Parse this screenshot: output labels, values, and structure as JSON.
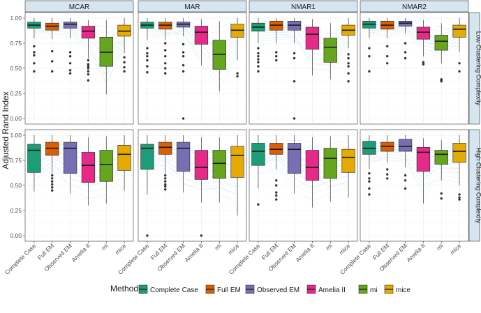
{
  "chart_data": {
    "type": "box",
    "title": "",
    "ylabel": "Adjusted Rand Index",
    "xlabel": "",
    "ylim": [
      0,
      1
    ],
    "yticks": [
      0.0,
      0.25,
      0.5,
      0.75,
      1.0
    ],
    "ytick_labels": [
      "0.00",
      "0.25",
      "0.50",
      "0.75",
      "1.00"
    ],
    "columns": [
      "MCAR",
      "MAR",
      "NMAR1",
      "NMAR2"
    ],
    "rows": [
      "Low Clustering Complexity",
      "High Clustering Complexity"
    ],
    "methods": [
      "Complete Case",
      "Full EM",
      "Observed EM",
      "Amelia II",
      "mi",
      "mice"
    ],
    "colors": {
      "Complete Case": "#1b9e77",
      "Full EM": "#d95f02",
      "Observed EM": "#7570b3",
      "Amelia II": "#e7298a",
      "mi": "#66a61e",
      "mice": "#e6ab02",
      "strip_fill": "#d6e6f0",
      "panel_bg": "#ffffff",
      "grid": "#ebebeb",
      "spaghetti": "#9ecae1"
    },
    "legend": {
      "title": "Method",
      "position": "bottom",
      "items": [
        "Complete Case",
        "Full EM",
        "Observed EM",
        "Amelia II",
        "mi",
        "mice"
      ]
    },
    "panels": [
      {
        "row": "Low Clustering Complexity",
        "col": "MCAR",
        "boxes": [
          {
            "method": "Complete Case",
            "q1": 0.9,
            "median": 0.93,
            "q3": 0.96,
            "lo": 0.8,
            "hi": 1.0,
            "outliers": [
              0.72,
              0.66,
              0.63,
              0.55,
              0.47
            ]
          },
          {
            "method": "Full EM",
            "q1": 0.88,
            "median": 0.92,
            "q3": 0.95,
            "lo": 0.79,
            "hi": 1.0,
            "outliers": [
              0.67,
              0.57,
              0.47
            ]
          },
          {
            "method": "Observed EM",
            "q1": 0.9,
            "median": 0.94,
            "q3": 0.96,
            "lo": 0.8,
            "hi": 1.0,
            "outliers": [
              0.66,
              0.62,
              0.55,
              0.48,
              0.45
            ]
          },
          {
            "method": "Amelia II",
            "q1": 0.8,
            "median": 0.87,
            "q3": 0.92,
            "lo": 0.6,
            "hi": 0.98,
            "outliers": [
              0.58,
              0.54,
              0.52,
              0.5,
              0.47,
              0.44,
              0.38
            ]
          },
          {
            "method": "mi",
            "q1": 0.52,
            "median": 0.66,
            "q3": 0.81,
            "lo": 0.24,
            "hi": 0.98,
            "outliers": []
          },
          {
            "method": "mice",
            "q1": 0.82,
            "median": 0.87,
            "q3": 0.93,
            "lo": 0.65,
            "hi": 1.0,
            "outliers": [
              0.61,
              0.56,
              0.51,
              0.47
            ]
          }
        ]
      },
      {
        "row": "Low Clustering Complexity",
        "col": "MAR",
        "boxes": [
          {
            "method": "Complete Case",
            "q1": 0.9,
            "median": 0.93,
            "q3": 0.96,
            "lo": 0.78,
            "hi": 1.0,
            "outliers": [
              0.7,
              0.65,
              0.62,
              0.58,
              0.52,
              0.46
            ]
          },
          {
            "method": "Full EM",
            "q1": 0.89,
            "median": 0.93,
            "q3": 0.96,
            "lo": 0.78,
            "hi": 1.0,
            "outliers": [
              0.75,
              0.68,
              0.62,
              0.55,
              0.5,
              0.45
            ]
          },
          {
            "method": "Observed EM",
            "q1": 0.91,
            "median": 0.94,
            "q3": 0.96,
            "lo": 0.82,
            "hi": 1.0,
            "outliers": [
              0.74,
              0.66,
              0.62,
              0.53,
              0.47,
              0.0
            ]
          },
          {
            "method": "Amelia II",
            "q1": 0.74,
            "median": 0.86,
            "q3": 0.92,
            "lo": 0.53,
            "hi": 0.99,
            "outliers": []
          },
          {
            "method": "mi",
            "q1": 0.49,
            "median": 0.64,
            "q3": 0.78,
            "lo": 0.27,
            "hi": 0.97,
            "outliers": []
          },
          {
            "method": "mice",
            "q1": 0.81,
            "median": 0.88,
            "q3": 0.94,
            "lo": 0.58,
            "hi": 1.0,
            "outliers": [
              0.45,
              0.42
            ]
          }
        ]
      },
      {
        "row": "Low Clustering Complexity",
        "col": "NMAR1",
        "boxes": [
          {
            "method": "Complete Case",
            "q1": 0.87,
            "median": 0.91,
            "q3": 0.95,
            "lo": 0.75,
            "hi": 1.0,
            "outliers": [
              0.7,
              0.65,
              0.62,
              0.59,
              0.56,
              0.52,
              0.47
            ]
          },
          {
            "method": "Full EM",
            "q1": 0.88,
            "median": 0.93,
            "q3": 0.97,
            "lo": 0.75,
            "hi": 1.0,
            "outliers": [
              0.66,
              0.62,
              0.58
            ]
          },
          {
            "method": "Observed EM",
            "q1": 0.88,
            "median": 0.93,
            "q3": 0.97,
            "lo": 0.75,
            "hi": 1.0,
            "outliers": [
              0.65,
              0.6,
              0.37,
              0.0
            ]
          },
          {
            "method": "Amelia II",
            "q1": 0.69,
            "median": 0.84,
            "q3": 0.91,
            "lo": 0.43,
            "hi": 0.99,
            "outliers": []
          },
          {
            "method": "mi",
            "q1": 0.56,
            "median": 0.71,
            "q3": 0.8,
            "lo": 0.39,
            "hi": 0.95,
            "outliers": []
          },
          {
            "method": "mice",
            "q1": 0.83,
            "median": 0.88,
            "q3": 0.93,
            "lo": 0.7,
            "hi": 1.0,
            "outliers": [
              0.64,
              0.6,
              0.55,
              0.52,
              0.45,
              0.37
            ]
          }
        ]
      },
      {
        "row": "Low Clustering Complexity",
        "col": "NMAR2",
        "boxes": [
          {
            "method": "Complete Case",
            "q1": 0.9,
            "median": 0.94,
            "q3": 0.97,
            "lo": 0.8,
            "hi": 1.0,
            "outliers": [
              0.7,
              0.62,
              0.47
            ]
          },
          {
            "method": "Full EM",
            "q1": 0.89,
            "median": 0.93,
            "q3": 0.97,
            "lo": 0.8,
            "hi": 1.0,
            "outliers": [
              0.72,
              0.62,
              0.55
            ]
          },
          {
            "method": "Observed EM",
            "q1": 0.92,
            "median": 0.95,
            "q3": 0.97,
            "lo": 0.85,
            "hi": 1.0,
            "outliers": [
              0.75,
              0.66,
              0.6
            ]
          },
          {
            "method": "Amelia II",
            "q1": 0.79,
            "median": 0.86,
            "q3": 0.91,
            "lo": 0.62,
            "hi": 0.98,
            "outliers": [
              0.56,
              0.54
            ]
          },
          {
            "method": "mi",
            "q1": 0.68,
            "median": 0.77,
            "q3": 0.83,
            "lo": 0.55,
            "hi": 0.95,
            "outliers": [
              0.39,
              0.38,
              0.37
            ]
          },
          {
            "method": "mice",
            "q1": 0.81,
            "median": 0.89,
            "q3": 0.93,
            "lo": 0.66,
            "hi": 1.0,
            "outliers": [
              0.55,
              0.47
            ]
          }
        ]
      },
      {
        "row": "High Clustering Complexity",
        "col": "MCAR",
        "boxes": [
          {
            "method": "Complete Case",
            "q1": 0.63,
            "median": 0.85,
            "q3": 0.91,
            "lo": 0.44,
            "hi": 1.0,
            "outliers": []
          },
          {
            "method": "Full EM",
            "q1": 0.8,
            "median": 0.87,
            "q3": 0.93,
            "lo": 0.62,
            "hi": 1.0,
            "outliers": [
              0.6,
              0.57,
              0.54,
              0.51,
              0.48,
              0.45
            ]
          },
          {
            "method": "Observed EM",
            "q1": 0.62,
            "median": 0.87,
            "q3": 0.93,
            "lo": 0.42,
            "hi": 1.0,
            "outliers": []
          },
          {
            "method": "Amelia II",
            "q1": 0.53,
            "median": 0.7,
            "q3": 0.83,
            "lo": 0.3,
            "hi": 0.98,
            "outliers": []
          },
          {
            "method": "mi",
            "q1": 0.54,
            "median": 0.71,
            "q3": 0.85,
            "lo": 0.32,
            "hi": 0.99,
            "outliers": []
          },
          {
            "method": "mice",
            "q1": 0.65,
            "median": 0.81,
            "q3": 0.9,
            "lo": 0.45,
            "hi": 1.0,
            "outliers": []
          }
        ]
      },
      {
        "row": "High Clustering Complexity",
        "col": "MAR",
        "boxes": [
          {
            "method": "Complete Case",
            "q1": 0.66,
            "median": 0.87,
            "q3": 0.91,
            "lo": 0.41,
            "hi": 1.0,
            "outliers": [
              0.0
            ]
          },
          {
            "method": "Full EM",
            "q1": 0.81,
            "median": 0.88,
            "q3": 0.93,
            "lo": 0.62,
            "hi": 1.0,
            "outliers": [
              0.6,
              0.57,
              0.54,
              0.51,
              0.49,
              0.46
            ]
          },
          {
            "method": "Observed EM",
            "q1": 0.64,
            "median": 0.87,
            "q3": 0.93,
            "lo": 0.43,
            "hi": 1.0,
            "outliers": []
          },
          {
            "method": "Amelia II",
            "q1": 0.56,
            "median": 0.68,
            "q3": 0.85,
            "lo": 0.33,
            "hi": 0.98,
            "outliers": [
              0.0
            ]
          },
          {
            "method": "mi",
            "q1": 0.57,
            "median": 0.72,
            "q3": 0.85,
            "lo": 0.33,
            "hi": 0.98,
            "outliers": []
          },
          {
            "method": "mice",
            "q1": 0.58,
            "median": 0.8,
            "q3": 0.89,
            "lo": 0.2,
            "hi": 1.0,
            "outliers": []
          }
        ]
      },
      {
        "row": "High Clustering Complexity",
        "col": "NMAR1",
        "boxes": [
          {
            "method": "Complete Case",
            "q1": 0.7,
            "median": 0.84,
            "q3": 0.92,
            "lo": 0.47,
            "hi": 1.0,
            "outliers": [
              0.31
            ]
          },
          {
            "method": "Full EM",
            "q1": 0.81,
            "median": 0.86,
            "q3": 0.92,
            "lo": 0.66,
            "hi": 1.0,
            "outliers": [
              0.55,
              0.5,
              0.43,
              0.4,
              0.36
            ]
          },
          {
            "method": "Observed EM",
            "q1": 0.62,
            "median": 0.86,
            "q3": 0.92,
            "lo": 0.42,
            "hi": 1.0,
            "outliers": []
          },
          {
            "method": "Amelia II",
            "q1": 0.55,
            "median": 0.68,
            "q3": 0.85,
            "lo": 0.28,
            "hi": 0.98,
            "outliers": []
          },
          {
            "method": "mi",
            "q1": 0.57,
            "median": 0.77,
            "q3": 0.87,
            "lo": 0.34,
            "hi": 0.99,
            "outliers": []
          },
          {
            "method": "mice",
            "q1": 0.63,
            "median": 0.78,
            "q3": 0.86,
            "lo": 0.38,
            "hi": 1.0,
            "outliers": []
          }
        ]
      },
      {
        "row": "High Clustering Complexity",
        "col": "NMAR2",
        "boxes": [
          {
            "method": "Complete Case",
            "q1": 0.81,
            "median": 0.87,
            "q3": 0.94,
            "lo": 0.66,
            "hi": 1.0,
            "outliers": [
              0.62,
              0.57,
              0.54,
              0.47,
              0.41
            ]
          },
          {
            "method": "Full EM",
            "q1": 0.84,
            "median": 0.89,
            "q3": 0.93,
            "lo": 0.73,
            "hi": 1.0,
            "outliers": [
              0.66,
              0.61,
              0.57
            ]
          },
          {
            "method": "Observed EM",
            "q1": 0.84,
            "median": 0.89,
            "q3": 0.96,
            "lo": 0.68,
            "hi": 1.0,
            "outliers": [
              0.6,
              0.55,
              0.47
            ]
          },
          {
            "method": "Amelia II",
            "q1": 0.64,
            "median": 0.83,
            "q3": 0.88,
            "lo": 0.32,
            "hi": 0.97,
            "outliers": []
          },
          {
            "method": "mi",
            "q1": 0.71,
            "median": 0.81,
            "q3": 0.85,
            "lo": 0.55,
            "hi": 0.95,
            "outliers": [
              0.42,
              0.37
            ]
          },
          {
            "method": "mice",
            "q1": 0.73,
            "median": 0.84,
            "q3": 0.92,
            "lo": 0.5,
            "hi": 1.0,
            "outliers": [
              0.41,
              0.38,
              0.36
            ]
          }
        ]
      }
    ]
  }
}
